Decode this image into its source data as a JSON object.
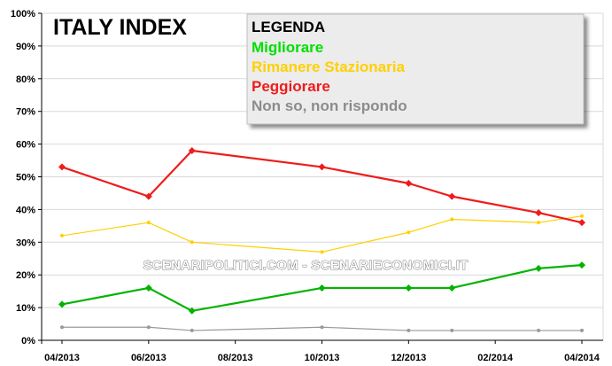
{
  "chart_data": {
    "type": "line",
    "title": "ITALY INDEX",
    "xlabel": "",
    "ylabel": "",
    "ylim": [
      0,
      100
    ],
    "y_ticks": [
      "0%",
      "10%",
      "20%",
      "30%",
      "40%",
      "50%",
      "60%",
      "70%",
      "80%",
      "90%",
      "100%"
    ],
    "x_ticks": [
      "04/2013",
      "06/2013",
      "08/2013",
      "10/2013",
      "12/2013",
      "02/2014",
      "04/2014"
    ],
    "grid": true,
    "legend_position": "top-right",
    "legend_title": "LEGENDA",
    "x_dates": [
      "04/2013",
      "06/2013",
      "07/2013",
      "10/2013",
      "12/2013",
      "01/2014",
      "03/2014",
      "04/2014"
    ],
    "series": [
      {
        "name": "Migliorare",
        "color": "#00b400",
        "marker": "diamond",
        "values": [
          11,
          16,
          9,
          16,
          16,
          16,
          22,
          23
        ]
      },
      {
        "name": "Rimanere Stazionaria",
        "color": "#ffd000",
        "marker": "dot",
        "values": [
          32,
          36,
          30,
          27,
          33,
          37,
          36,
          38
        ]
      },
      {
        "name": "Peggiorare",
        "color": "#ee1c1c",
        "marker": "diamond",
        "values": [
          53,
          44,
          58,
          53,
          48,
          44,
          39,
          36
        ]
      },
      {
        "name": "Non so, non rispondo",
        "color": "#999999",
        "marker": "dot",
        "values": [
          4,
          4,
          3,
          4,
          3,
          3,
          3,
          3
        ]
      }
    ],
    "watermark": "SCENARIPOLITICI.COM - SCENARIECONOMICI.IT"
  },
  "colors": {
    "legend_color_migliorare": "#00e000",
    "legend_color_stazionaria": "#ffd000",
    "legend_color_peggiorare": "#ee1c1c",
    "legend_color_nonso": "#8c8c8c"
  }
}
